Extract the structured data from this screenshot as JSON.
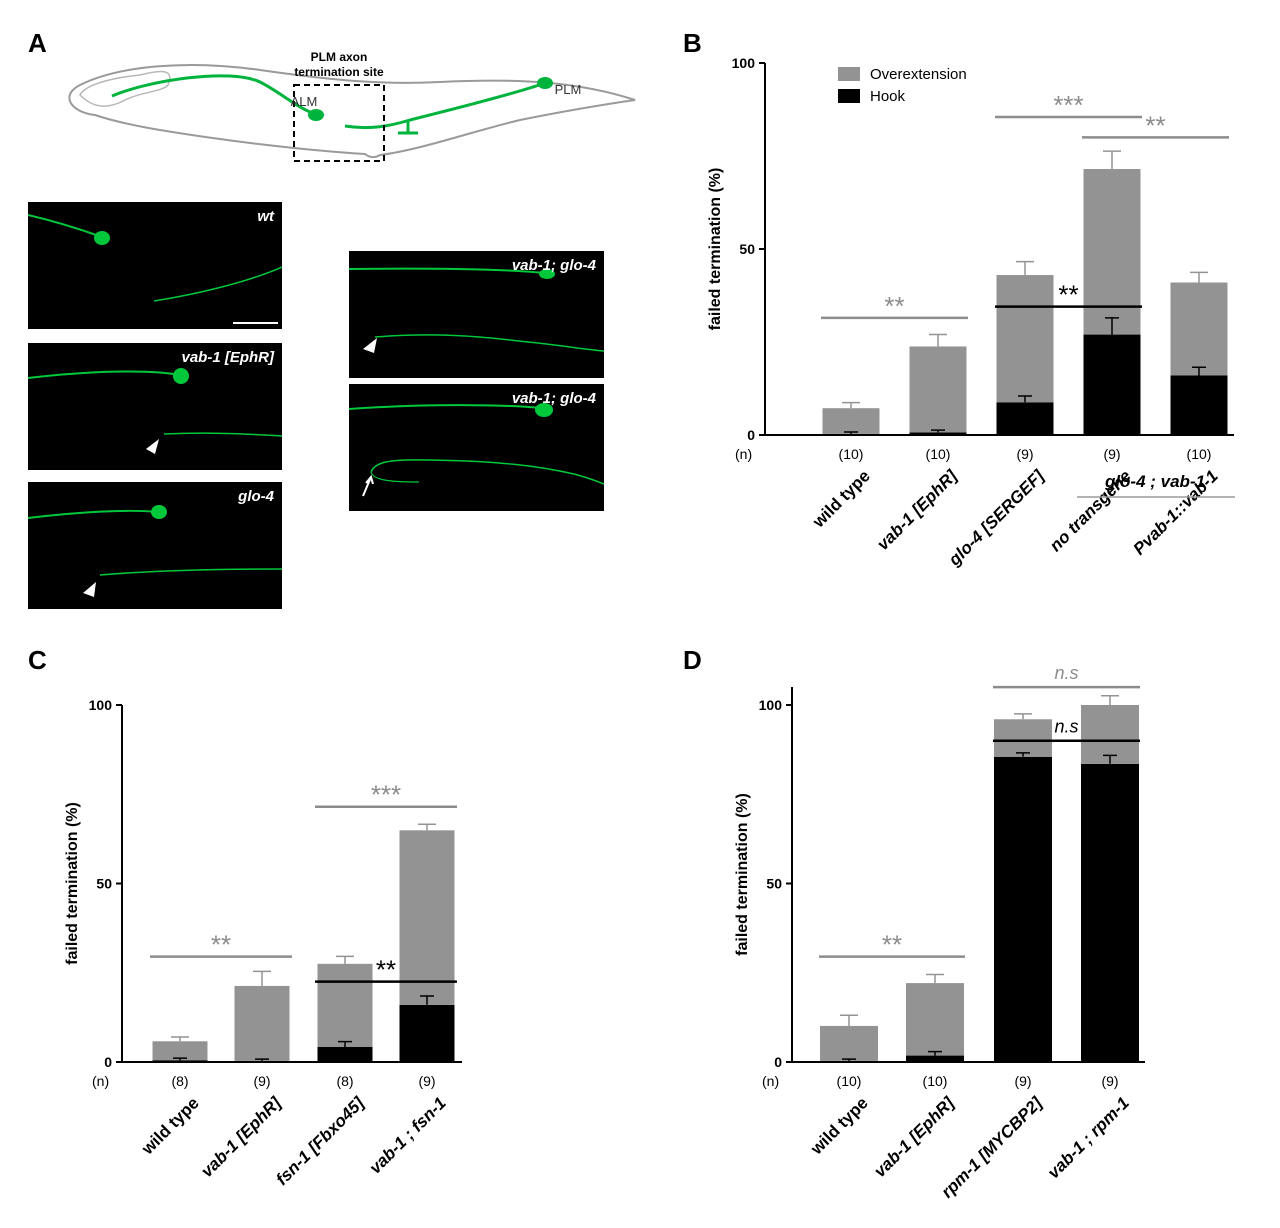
{
  "panels": {
    "a": "A",
    "b": "B",
    "c": "C",
    "d": "D"
  },
  "schematic": {
    "site_label_line1": "PLM axon",
    "site_label_line2": "termination site",
    "alm": "ALM",
    "plm": "PLM"
  },
  "micrographs": {
    "wt": "wt",
    "vab1": "vab-1 [EphR]",
    "glo4": "glo-4",
    "double1": "vab-1; glo-4",
    "double2": "vab-1; glo-4"
  },
  "legend": {
    "overextension": "Overextension",
    "hook": "Hook"
  },
  "colors": {
    "overextension": "#939393",
    "hook": "#000000",
    "green": "#00c83a",
    "sig_gray": "#8c8c8c"
  },
  "chart_data": [
    {
      "id": "B",
      "type": "bar",
      "stacked": true,
      "ylabel": "failed termination (%)",
      "ylim": [
        0,
        100
      ],
      "yticks": [
        0,
        50,
        100
      ],
      "n_label": "(n)",
      "categories": [
        "wild type",
        "vab-1 [EphR]",
        "glo-4 [SERGEF]",
        "no transgene",
        "Pvab-1::vab-1"
      ],
      "group_label": "glo-4 ; vab-1",
      "n": [
        "(10)",
        "(10)",
        "(9)",
        "(9)",
        "(10)"
      ],
      "series": [
        {
          "name": "Hook",
          "values": [
            0.3,
            0.7,
            8.8,
            27,
            16
          ],
          "errors": [
            0.5,
            0.6,
            1.7,
            4.5,
            2.2
          ]
        },
        {
          "name": "Overextension",
          "values": [
            6.9,
            23.1,
            34.2,
            44.5,
            25
          ],
          "errors": [
            1.5,
            3.2,
            3.6,
            4.8,
            2.7
          ]
        }
      ],
      "significance": [
        {
          "label": "**",
          "from": 0,
          "to": 1,
          "y": 31.5,
          "color": "gray"
        },
        {
          "label": "***",
          "from": 2,
          "to": 3,
          "y": 85.5,
          "color": "gray"
        },
        {
          "label": "**",
          "from": 3,
          "to": 4,
          "y": 80,
          "color": "gray"
        },
        {
          "label": "**",
          "from": 2,
          "to": 3,
          "y": 34.5,
          "color": "black"
        }
      ]
    },
    {
      "id": "C",
      "type": "bar",
      "stacked": true,
      "ylabel": "failed termination (%)",
      "ylim": [
        0,
        100
      ],
      "yticks": [
        0,
        50,
        100
      ],
      "n_label": "(n)",
      "categories": [
        "wild type",
        "vab-1 [EphR]",
        "fsn-1 [Fbxo45]",
        "vab-1 ; fsn-1"
      ],
      "n": [
        "(8)",
        "(9)",
        "(8)",
        "(9)"
      ],
      "series": [
        {
          "name": "Hook",
          "values": [
            0.5,
            0.3,
            4.2,
            16
          ],
          "errors": [
            0.6,
            0.5,
            1.5,
            2.5
          ]
        },
        {
          "name": "Overextension",
          "values": [
            5.3,
            21,
            23.3,
            48.9
          ],
          "errors": [
            1.2,
            4.1,
            2.1,
            1.7
          ]
        }
      ],
      "significance": [
        {
          "label": "**",
          "from": 0,
          "to": 1,
          "y": 29.5,
          "color": "gray"
        },
        {
          "label": "***",
          "from": 2,
          "to": 3,
          "y": 71.5,
          "color": "gray"
        },
        {
          "label": "**",
          "from": 2,
          "to": 3,
          "y": 22.5,
          "color": "black"
        }
      ]
    },
    {
      "id": "D",
      "type": "bar",
      "stacked": true,
      "ylabel": "failed termination (%)",
      "ylim": [
        0,
        100
      ],
      "yticks": [
        0,
        50,
        100
      ],
      "n_label": "(n)",
      "categories": [
        "wild type",
        "vab-1 [EphR]",
        "rpm-1 [MYCBP2]",
        "vab-1 ; rpm-1"
      ],
      "n": [
        "(10)",
        "(10)",
        "(9)",
        "(9)"
      ],
      "series": [
        {
          "name": "Hook",
          "values": [
            0.3,
            1.8,
            85.5,
            83.5
          ],
          "errors": [
            0.5,
            1.1,
            1.1,
            2.4
          ]
        },
        {
          "name": "Overextension",
          "values": [
            9.8,
            20.3,
            10.5,
            16.5
          ],
          "errors": [
            3.0,
            2.4,
            1.5,
            2.6
          ]
        }
      ],
      "significance": [
        {
          "label": "**",
          "from": 0,
          "to": 1,
          "y": 29.5,
          "color": "gray"
        },
        {
          "label": "n.s",
          "from": 2,
          "to": 3,
          "y": 105,
          "color": "gray"
        },
        {
          "label": "n.s",
          "from": 2,
          "to": 3,
          "y": 90,
          "color": "black"
        }
      ]
    }
  ]
}
